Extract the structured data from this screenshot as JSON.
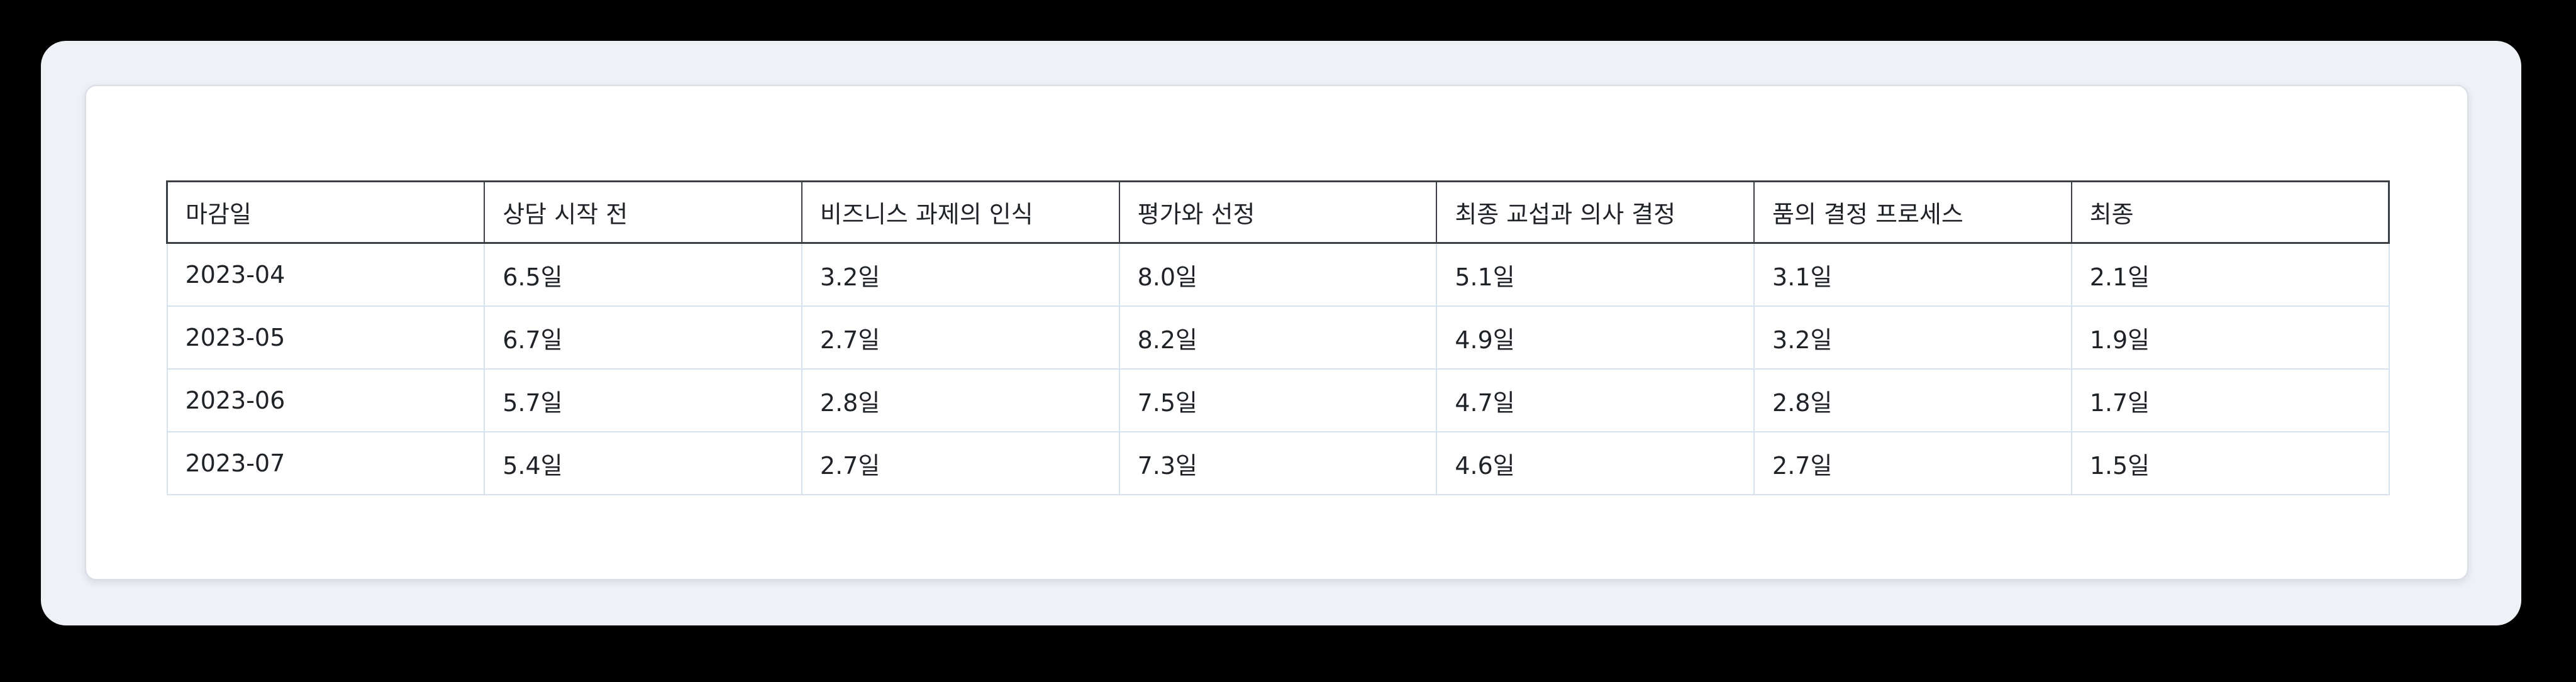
{
  "table": {
    "headers": [
      "마감일",
      "상담 시작 전",
      "비즈니스 과제의 인식",
      "평가와 선정",
      "최종 교섭과 의사 결정",
      "품의 결정 프로세스",
      "최종"
    ],
    "rows": [
      [
        "2023-04",
        "6.5일",
        "3.2일",
        "8.0일",
        "5.1일",
        "3.1일",
        "2.1일"
      ],
      [
        "2023-05",
        "6.7일",
        "2.7일",
        "8.2일",
        "4.9일",
        "3.2일",
        "1.9일"
      ],
      [
        "2023-06",
        "5.7일",
        "2.8일",
        "7.5일",
        "4.7일",
        "2.8일",
        "1.7일"
      ],
      [
        "2023-07",
        "5.4일",
        "2.7일",
        "7.3일",
        "4.6일",
        "2.7일",
        "1.5일"
      ]
    ]
  },
  "colors": {
    "page_background": "#eef1f6",
    "card_background": "#ffffff",
    "header_border": "#3b3f46",
    "cell_border": "#d6e2ee",
    "text": "#1f2328"
  }
}
